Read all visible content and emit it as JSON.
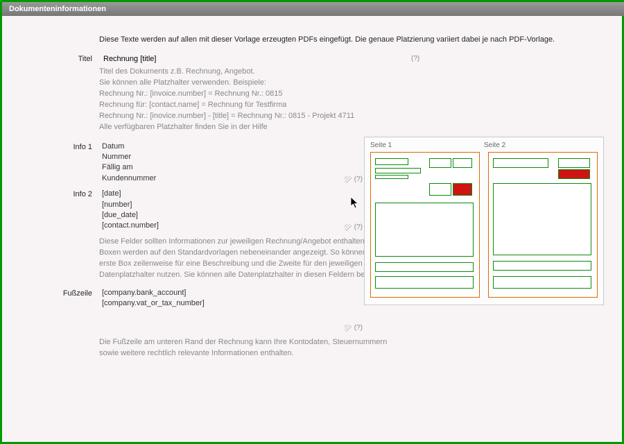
{
  "header": {
    "title": "Dokumenteninformationen"
  },
  "intro": "Diese Texte werden auf allen mit dieser Vorlage erzeugten PDFs eingefügt. Die genaue Platzierung variiert dabei je nach PDF-Vorlage.",
  "fields": {
    "title_label": "Titel",
    "title_value": "Rechnung [title]",
    "title_qmark": "(?)",
    "title_help": [
      "Titel des Dokuments z.B. Rechnung, Angebot.",
      "Sie können alle Platzhalter verwenden. Beispiele:",
      "Rechnung Nr.: [invoice.number] = Rechnung Nr.: 0815",
      "Rechnung für: [contact.name] = Rechnung für Testfirma",
      "Rechnung Nr.: [inovice.number] - [title] = Rechnung Nr.: 0815 - Projekt 4711",
      "Alle verfügbaren Platzhalter finden Sie in der Hilfe"
    ],
    "info1_label": "Info 1",
    "info1_lines": [
      "Datum",
      "Nummer",
      "Fällig am",
      "Kundennummer"
    ],
    "info1_qmark": "(?)",
    "info2_label": "Info 2",
    "info2_lines": [
      "[date]",
      "[number]",
      "[due_date]",
      "[contact.number]"
    ],
    "info2_qmark": "(?)",
    "info_note": "Diese Felder sollten Informationen zur jeweiligen Rechnung/Angebot enthalten. Beide Boxen werden auf den Standardvorlagen nebeneinander angezeigt. So können Sie die erste Box zeilenweise für eine Beschreibung und die Zweite für den jeweiligen Datenplatzhalter nutzen. Sie können alle Datenplatzhalter in diesen Feldern benutzen.",
    "footer_label": "Fußzeile",
    "footer_lines": [
      "[company.bank_account]",
      "[company.vat_or_tax_number]"
    ],
    "footer_qmark": "(?)",
    "footer_note": "Die Fußzeile am unteren Rand der Rechnung kann Ihre Kontodaten, Steuernummern sowie weitere rechtlich relevante Informationen enthalten."
  },
  "preview": {
    "page1_label": "Seite 1",
    "page2_label": "Seite 2",
    "colors": {
      "page_border": "#d96c00",
      "box_border": "#0a8a0a",
      "highlight": "#d01414"
    },
    "page1_boxes": [
      {
        "l": 6,
        "t": 8,
        "w": 48,
        "h": 10
      },
      {
        "l": 6,
        "t": 22,
        "w": 66,
        "h": 8
      },
      {
        "l": 6,
        "t": 32,
        "w": 48,
        "h": 6
      },
      {
        "l": 84,
        "t": 8,
        "w": 32,
        "h": 14
      },
      {
        "l": 118,
        "t": 8,
        "w": 28,
        "h": 14
      },
      {
        "l": 84,
        "t": 44,
        "w": 32,
        "h": 18
      },
      {
        "l": 118,
        "t": 44,
        "w": 28,
        "h": 18
      },
      {
        "l": 6,
        "t": 72,
        "w": 142,
        "h": 78
      },
      {
        "l": 6,
        "t": 158,
        "w": 142,
        "h": 14
      },
      {
        "l": 6,
        "t": 178,
        "w": 142,
        "h": 18
      }
    ],
    "page1_highlight": {
      "l": 119,
      "t": 45,
      "w": 26,
      "h": 16
    },
    "page2_boxes": [
      {
        "l": 6,
        "t": 8,
        "w": 80,
        "h": 14
      },
      {
        "l": 100,
        "t": 8,
        "w": 46,
        "h": 14
      },
      {
        "l": 100,
        "t": 24,
        "w": 46,
        "h": 14
      },
      {
        "l": 6,
        "t": 44,
        "w": 142,
        "h": 104
      },
      {
        "l": 6,
        "t": 156,
        "w": 142,
        "h": 14
      },
      {
        "l": 6,
        "t": 178,
        "w": 142,
        "h": 18
      }
    ],
    "page2_highlight": {
      "l": 101,
      "t": 25,
      "w": 44,
      "h": 12
    }
  }
}
